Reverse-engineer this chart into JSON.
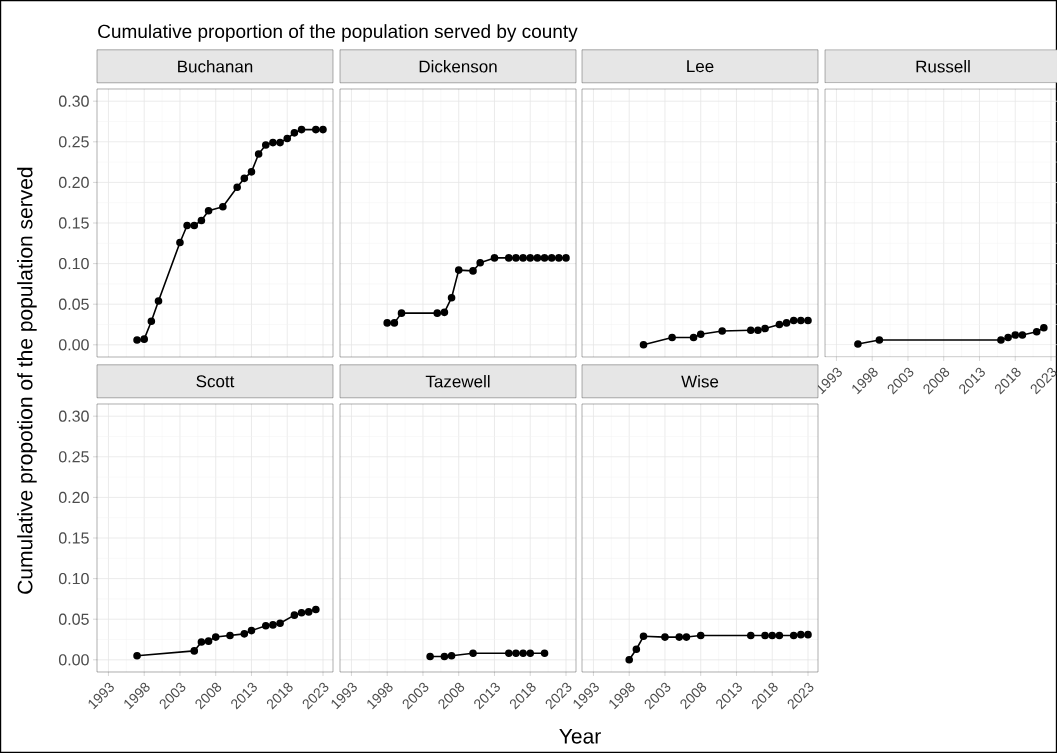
{
  "chart_data": [
    {
      "type": "line",
      "title": "Buchanan",
      "ylabel": "Cumulative propotion of the population served",
      "annotations": [
        "Cumulative proportion of the population served by county"
      ],
      "x": [
        1997,
        1998,
        1999,
        2000,
        2003,
        2004,
        2005,
        2006,
        2007,
        2009,
        2011,
        2012,
        2013,
        2014,
        2015,
        2016,
        2017,
        2018,
        2019,
        2020,
        2022,
        2023
      ],
      "values": [
        0.006,
        0.007,
        0.029,
        0.054,
        0.126,
        0.147,
        0.147,
        0.153,
        0.165,
        0.17,
        0.194,
        0.205,
        0.213,
        0.235,
        0.246,
        0.249,
        0.249,
        0.254,
        0.261,
        0.265,
        0.265,
        0.265
      ],
      "color": "#000000",
      "marker": "circle",
      "line_style": "solid",
      "grid": true,
      "tick_labels": "y",
      "xlim": [
        1991.4,
        2024.4
      ],
      "ylim": [
        -0.015,
        0.315
      ],
      "xticks": [
        1993,
        1998,
        2003,
        2008,
        2013,
        2018,
        2023
      ],
      "yticks": [
        {
          "value": 0,
          "label": "0.00"
        },
        {
          "value": 0.05,
          "label": "0.05"
        },
        {
          "value": 0.1,
          "label": "0.10"
        },
        {
          "value": 0.15,
          "label": "0.15"
        },
        {
          "value": 0.2,
          "label": "0.20"
        },
        {
          "value": 0.25,
          "label": "0.25"
        },
        {
          "value": 0.3,
          "label": "0.30"
        }
      ]
    },
    {
      "type": "line",
      "title": "Dickenson",
      "x": [
        1998,
        1999,
        2000,
        2005,
        2006,
        2007,
        2008,
        2010,
        2011,
        2013,
        2015,
        2016,
        2017,
        2018,
        2019,
        2020,
        2021,
        2022,
        2023
      ],
      "values": [
        0.027,
        0.027,
        0.039,
        0.039,
        0.04,
        0.058,
        0.092,
        0.091,
        0.101,
        0.107,
        0.107,
        0.107,
        0.107,
        0.107,
        0.107,
        0.107,
        0.107,
        0.107,
        0.107
      ],
      "color": "#000000",
      "marker": "circle",
      "line_style": "solid",
      "grid": true,
      "tick_labels": false,
      "xlim": [
        1991.4,
        2024.4
      ],
      "ylim": [
        -0.015,
        0.315
      ],
      "xticks": [
        1993,
        1998,
        2003,
        2008,
        2013,
        2018,
        2023
      ],
      "yticks": [
        0,
        0.05,
        0.1,
        0.15,
        0.2,
        0.25,
        0.3
      ]
    },
    {
      "type": "line",
      "title": "Lee",
      "x": [
        2000,
        2004,
        2007,
        2008,
        2011,
        2015,
        2016,
        2017,
        2019,
        2020,
        2021,
        2022,
        2023
      ],
      "values": [
        0.0,
        0.009,
        0.009,
        0.013,
        0.017,
        0.018,
        0.018,
        0.02,
        0.025,
        0.027,
        0.03,
        0.03,
        0.03
      ],
      "color": "#000000",
      "marker": "circle",
      "line_style": "solid",
      "grid": true,
      "tick_labels": false,
      "xlim": [
        1991.4,
        2024.4
      ],
      "ylim": [
        -0.015,
        0.315
      ],
      "xticks": [
        1993,
        1998,
        2003,
        2008,
        2013,
        2018,
        2023
      ],
      "yticks": [
        0,
        0.05,
        0.1,
        0.15,
        0.2,
        0.25,
        0.3
      ]
    },
    {
      "type": "line",
      "title": "Russell",
      "x": [
        1996,
        1999,
        2016,
        2017,
        2018,
        2019,
        2021,
        2022
      ],
      "values": [
        0.001,
        0.006,
        0.006,
        0.009,
        0.012,
        0.012,
        0.016,
        0.021
      ],
      "color": "#000000",
      "marker": "circle",
      "line_style": "solid",
      "grid": true,
      "tick_labels": "x",
      "xlim": [
        1991.4,
        2024.4
      ],
      "ylim": [
        -0.015,
        0.315
      ],
      "xticks": [
        1993,
        1998,
        2003,
        2008,
        2013,
        2018,
        2023
      ],
      "yticks": [
        0,
        0.05,
        0.1,
        0.15,
        0.2,
        0.25,
        0.3
      ]
    },
    {
      "type": "line",
      "title": "Scott",
      "x": [
        1997,
        2005,
        2006,
        2007,
        2008,
        2010,
        2012,
        2013,
        2015,
        2016,
        2017,
        2019,
        2020,
        2021,
        2022
      ],
      "values": [
        0.005,
        0.011,
        0.022,
        0.023,
        0.028,
        0.03,
        0.032,
        0.036,
        0.042,
        0.043,
        0.045,
        0.055,
        0.058,
        0.059,
        0.062
      ],
      "color": "#000000",
      "marker": "circle",
      "line_style": "solid",
      "grid": true,
      "xlim": [
        1991.4,
        2024.4
      ],
      "ylim": [
        -0.015,
        0.315
      ],
      "xticks": [
        1993,
        1998,
        2003,
        2008,
        2013,
        2018,
        2023
      ],
      "yticks": [
        {
          "value": 0,
          "label": "0.00"
        },
        {
          "value": 0.05,
          "label": "0.05"
        },
        {
          "value": 0.1,
          "label": "0.10"
        },
        {
          "value": 0.15,
          "label": "0.15"
        },
        {
          "value": 0.2,
          "label": "0.20"
        },
        {
          "value": 0.25,
          "label": "0.25"
        },
        {
          "value": 0.3,
          "label": "0.30"
        }
      ]
    },
    {
      "type": "line",
      "title": "Tazewell",
      "xlabel": "Year",
      "x": [
        2004,
        2006,
        2007,
        2010,
        2015,
        2016,
        2017,
        2018,
        2020
      ],
      "values": [
        0.004,
        0.004,
        0.005,
        0.008,
        0.008,
        0.008,
        0.008,
        0.008,
        0.008
      ],
      "color": "#000000",
      "marker": "circle",
      "line_style": "solid",
      "grid": true,
      "tick_labels": "x",
      "xlim": [
        1991.4,
        2024.4
      ],
      "ylim": [
        -0.015,
        0.315
      ],
      "xticks": [
        1993,
        1998,
        2003,
        2008,
        2013,
        2018,
        2023
      ],
      "yticks": [
        0,
        0.05,
        0.1,
        0.15,
        0.2,
        0.25,
        0.3
      ]
    },
    {
      "type": "line",
      "title": "Wise",
      "x": [
        1998,
        1999,
        2000,
        2003,
        2005,
        2006,
        2008,
        2015,
        2017,
        2018,
        2019,
        2021,
        2022,
        2023
      ],
      "values": [
        0.0,
        0.013,
        0.029,
        0.028,
        0.028,
        0.028,
        0.03,
        0.03,
        0.03,
        0.03,
        0.03,
        0.03,
        0.031,
        0.031
      ],
      "color": "#000000",
      "marker": "circle",
      "line_style": "solid",
      "grid": true,
      "tick_labels": "x",
      "xlim": [
        1991.4,
        2024.4
      ],
      "ylim": [
        -0.015,
        0.315
      ],
      "xticks": [
        1993,
        1998,
        2003,
        2008,
        2013,
        2018,
        2023
      ],
      "yticks": [
        0,
        0.05,
        0.1,
        0.15,
        0.2,
        0.25,
        0.3
      ]
    }
  ]
}
